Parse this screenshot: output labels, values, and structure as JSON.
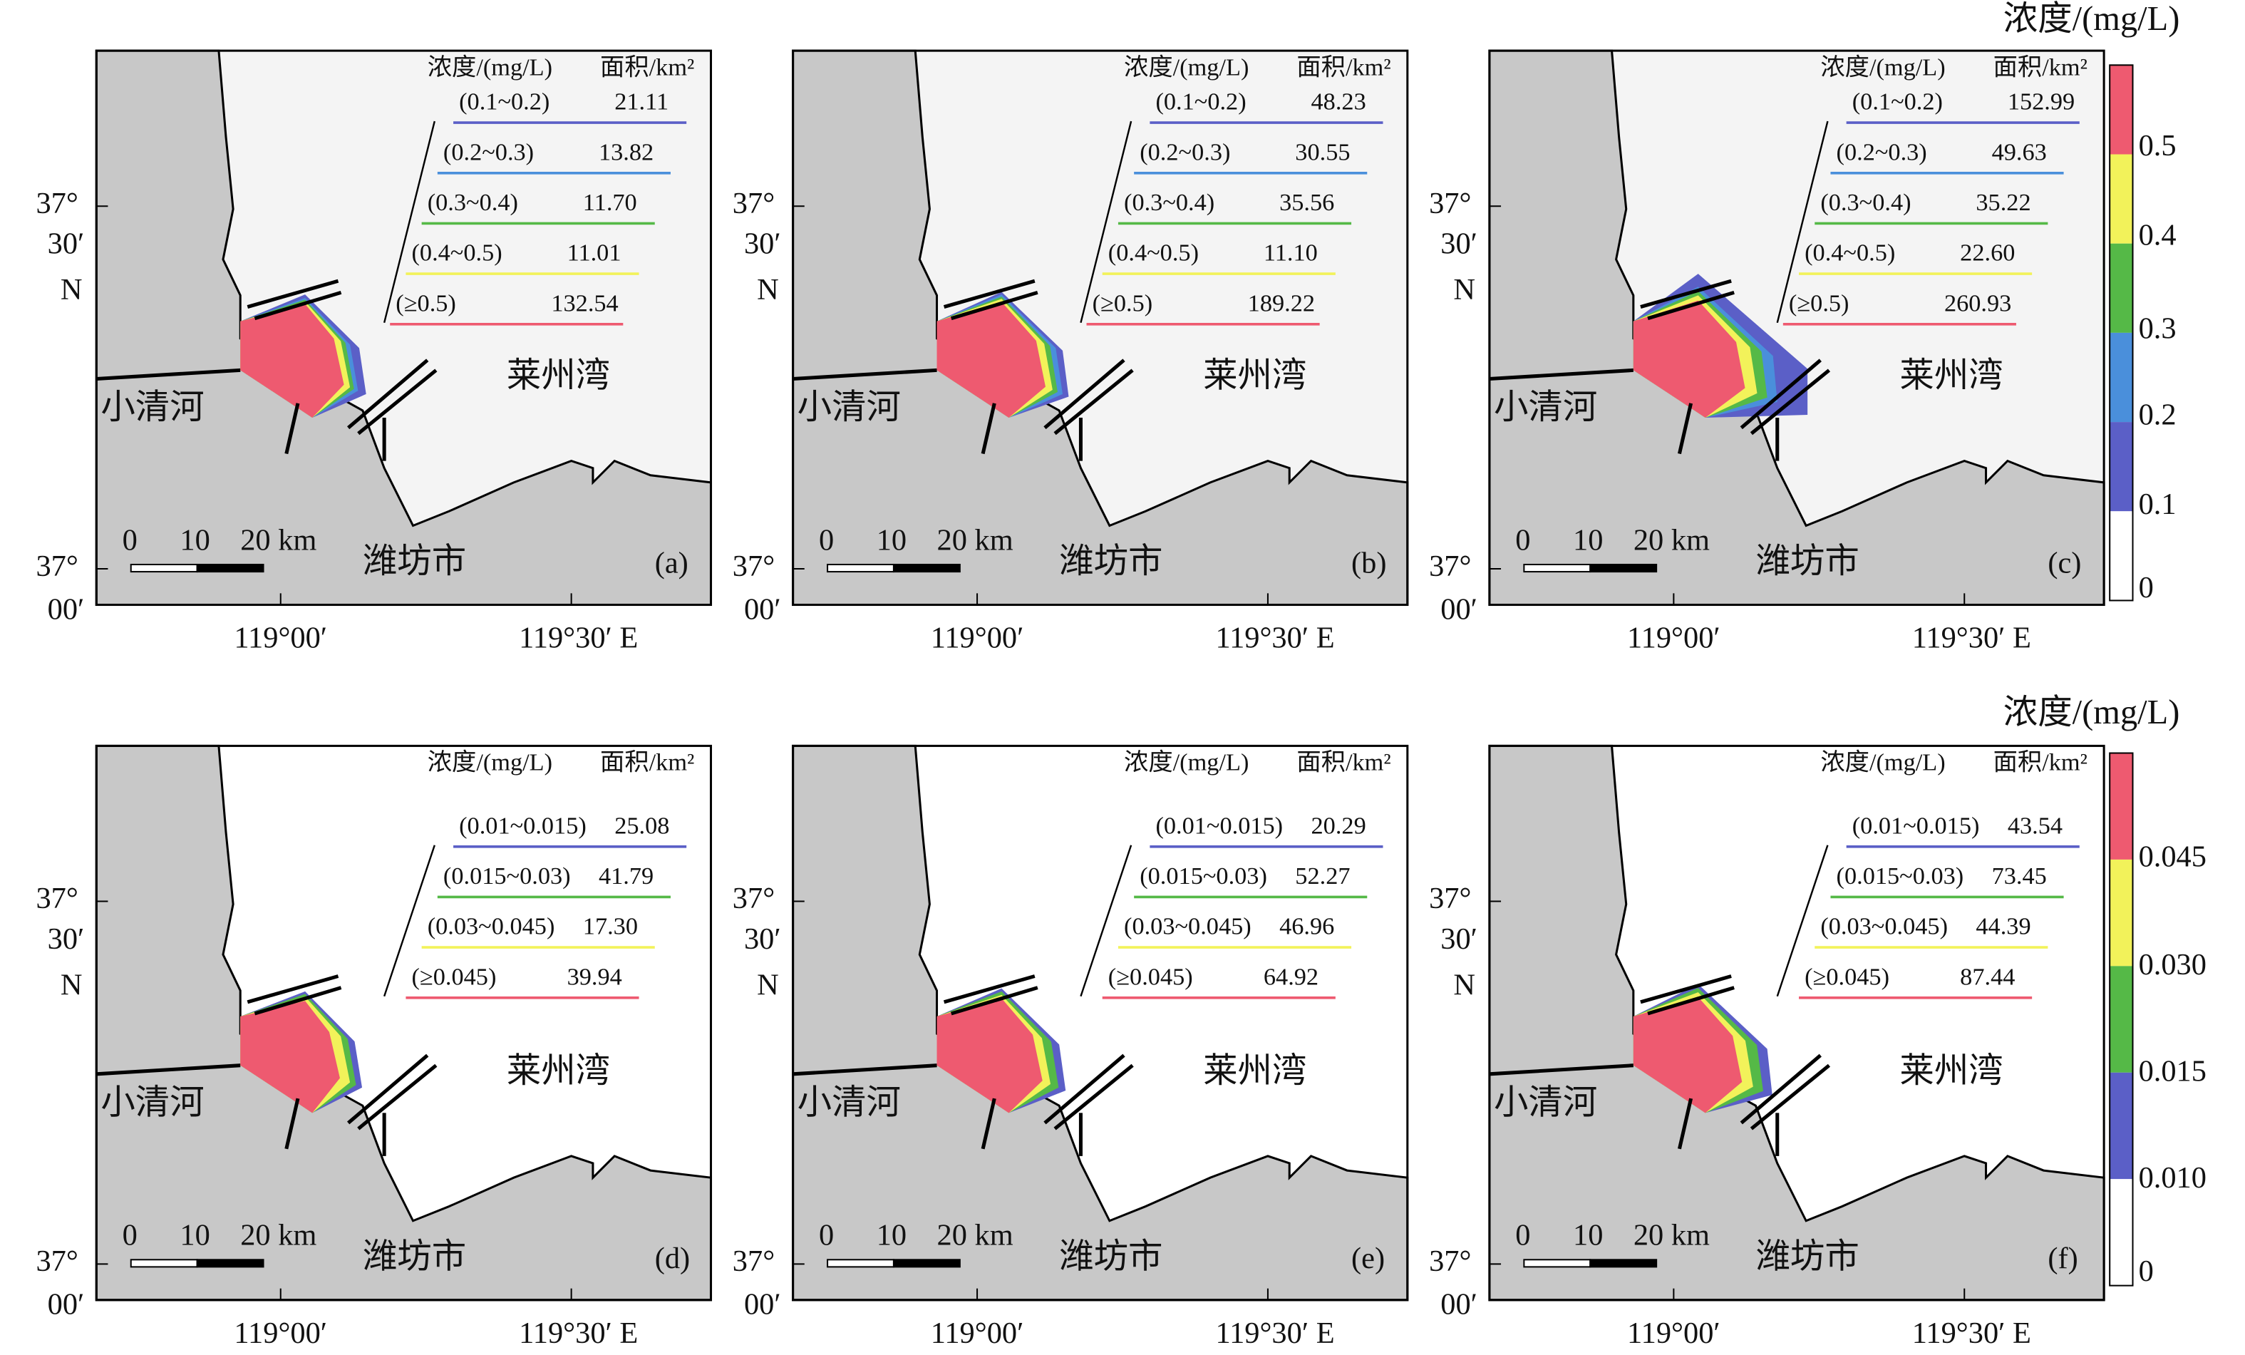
{
  "legend_header": [
    "浓度/(mg/L)",
    "面积/km²"
  ],
  "place_labels": {
    "river": "小清河",
    "bay": "莱州湾",
    "city": "潍坊市"
  },
  "scale_bar": [
    "0",
    "10",
    "20 km"
  ],
  "lat_ticks": [
    [
      "37°",
      "30′",
      "N"
    ],
    [
      "37°",
      "00′"
    ]
  ],
  "lon_ticks": [
    "119°00′",
    "119°30′ E"
  ],
  "panels": [
    {
      "label": "(a)",
      "rows": [
        {
          "range": "(0.1~0.2)",
          "area": "21.11"
        },
        {
          "range": "(0.2~0.3)",
          "area": "13.82"
        },
        {
          "range": "(0.3~0.4)",
          "area": "11.70"
        },
        {
          "range": "(0.4~0.5)",
          "area": "11.01"
        },
        {
          "range": "(≥0.5)",
          "area": "132.54"
        }
      ]
    },
    {
      "label": "(b)",
      "rows": [
        {
          "range": "(0.1~0.2)",
          "area": "48.23"
        },
        {
          "range": "(0.2~0.3)",
          "area": "30.55"
        },
        {
          "range": "(0.3~0.4)",
          "area": "35.56"
        },
        {
          "range": "(0.4~0.5)",
          "area": "11.10"
        },
        {
          "range": "(≥0.5)",
          "area": "189.22"
        }
      ]
    },
    {
      "label": "(c)",
      "rows": [
        {
          "range": "(0.1~0.2)",
          "area": "152.99"
        },
        {
          "range": "(0.2~0.3)",
          "area": "49.63"
        },
        {
          "range": "(0.3~0.4)",
          "area": "35.22"
        },
        {
          "range": "(0.4~0.5)",
          "area": "22.60"
        },
        {
          "range": "(≥0.5)",
          "area": "260.93"
        }
      ]
    },
    {
      "label": "(d)",
      "rows": [
        {
          "range": "(0.01~0.015)",
          "area": "25.08"
        },
        {
          "range": "(0.015~0.03)",
          "area": "41.79"
        },
        {
          "range": "(0.03~0.045)",
          "area": "17.30"
        },
        {
          "range": "(≥0.045)",
          "area": "39.94"
        }
      ]
    },
    {
      "label": "(e)",
      "rows": [
        {
          "range": "(0.01~0.015)",
          "area": "20.29"
        },
        {
          "range": "(0.015~0.03)",
          "area": "52.27"
        },
        {
          "range": "(0.03~0.045)",
          "area": "46.96"
        },
        {
          "range": "(≥0.045)",
          "area": "64.92"
        }
      ]
    },
    {
      "label": "(f)",
      "rows": [
        {
          "range": "(0.01~0.015)",
          "area": "43.54"
        },
        {
          "range": "(0.015~0.03)",
          "area": "73.45"
        },
        {
          "range": "(0.03~0.045)",
          "area": "44.39"
        },
        {
          "range": "(≥0.045)",
          "area": "87.44"
        }
      ]
    }
  ],
  "colorbars": [
    {
      "title": "浓度/(mg/L)",
      "ticks": [
        "0.5",
        "0.4",
        "0.3",
        "0.2",
        "0.1",
        "0"
      ],
      "colors": [
        "#ee5a70",
        "#f2f25a",
        "#55b947",
        "#4a8fdb",
        "#5b5fc7",
        "#ffffff"
      ]
    },
    {
      "title": "浓度/(mg/L)",
      "ticks": [
        "0.045",
        "0.030",
        "0.015",
        "0.010",
        "0"
      ],
      "colors": [
        "#ee5a70",
        "#f2f25a",
        "#55b947",
        "#5b5fc7",
        "#ffffff"
      ]
    }
  ]
}
